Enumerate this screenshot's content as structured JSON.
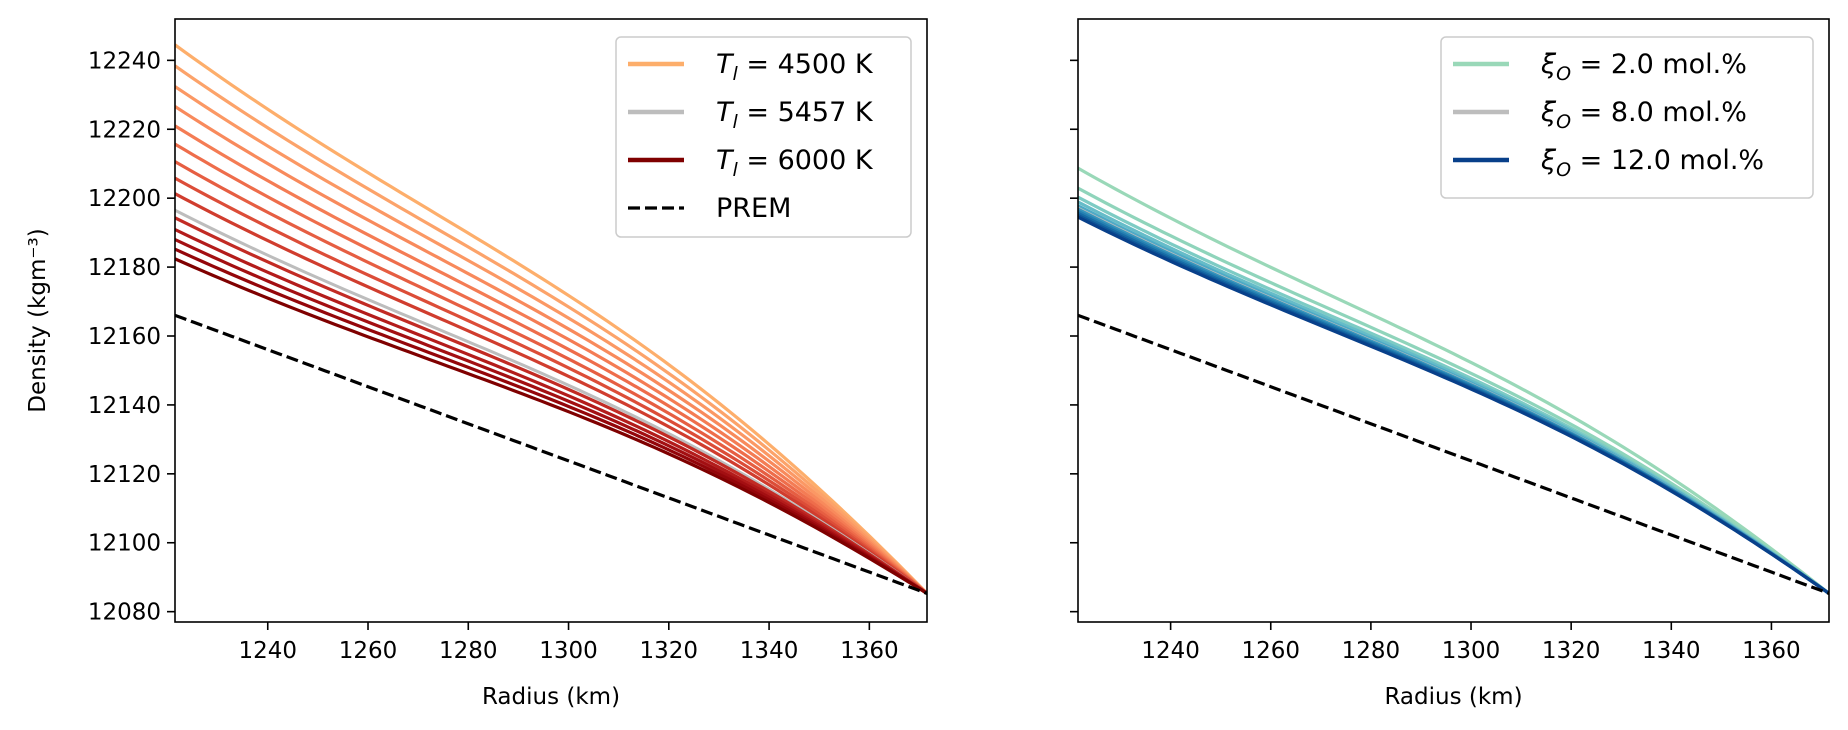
{
  "chart_data": [
    {
      "type": "line",
      "panel": "left",
      "xlabel": "Radius (km)",
      "ylabel": "Density (kgm⁻³)",
      "xlim": [
        1221.5,
        1371.5
      ],
      "ylim": [
        12077,
        12252
      ],
      "xticks": [
        1240,
        1260,
        1280,
        1300,
        1320,
        1340,
        1360
      ],
      "yticks": [
        12080,
        12100,
        12120,
        12140,
        12160,
        12180,
        12200,
        12220,
        12240
      ],
      "legend_position": "top-right",
      "grid": false,
      "legend": [
        {
          "label": "T_l = 4500 K",
          "color": "#fdae6b",
          "style": "solid"
        },
        {
          "label": "T_l = 5457 K",
          "color": "#bdbdbd",
          "style": "solid"
        },
        {
          "label": "T_l = 6000 K",
          "color": "#7f0000",
          "style": "solid"
        },
        {
          "label": "PREM",
          "color": "#000000",
          "style": "dashed"
        }
      ],
      "series": [
        {
          "name": "T_l = 4500 K",
          "color": "#fdae6b",
          "values_at_x": {
            "1221.5": 12244.5,
            "1371.5": 12085.3
          }
        },
        {
          "color": "#fca36a",
          "values_at_x": {
            "1221.5": 12238.4,
            "1371.5": 12085.3
          }
        },
        {
          "color": "#fb9864",
          "values_at_x": {
            "1221.5": 12232.4,
            "1371.5": 12085.3
          }
        },
        {
          "color": "#f88a5c",
          "values_at_x": {
            "1221.5": 12226.6,
            "1371.5": 12085.3
          }
        },
        {
          "color": "#f47c54",
          "values_at_x": {
            "1221.5": 12221.0,
            "1371.5": 12085.3
          }
        },
        {
          "color": "#ee6d4b",
          "values_at_x": {
            "1221.5": 12215.7,
            "1371.5": 12085.3
          }
        },
        {
          "color": "#e65e42",
          "values_at_x": {
            "1221.5": 12210.6,
            "1371.5": 12085.3
          }
        },
        {
          "color": "#dc4d38",
          "values_at_x": {
            "1221.5": 12205.8,
            "1371.5": 12085.3
          }
        },
        {
          "color": "#d03d2e",
          "values_at_x": {
            "1221.5": 12201.3,
            "1371.5": 12085.3
          }
        },
        {
          "name": "T_l = 5457 K",
          "color": "#bdbdbd",
          "values_at_x": {
            "1221.5": 12196.5,
            "1371.5": 12085.3
          }
        },
        {
          "color": "#c22b24",
          "values_at_x": {
            "1221.5": 12194.3,
            "1371.5": 12085.3
          }
        },
        {
          "color": "#b31c1b",
          "values_at_x": {
            "1221.5": 12190.9,
            "1371.5": 12085.3
          }
        },
        {
          "color": "#a30f12",
          "values_at_x": {
            "1221.5": 12188.0,
            "1371.5": 12085.3
          }
        },
        {
          "color": "#94060a",
          "values_at_x": {
            "1221.5": 12185.2,
            "1371.5": 12085.3
          }
        },
        {
          "name": "T_l = 6000 K",
          "color": "#7f0000",
          "values_at_x": {
            "1221.5": 12182.4,
            "1371.5": 12085.3
          }
        },
        {
          "name": "PREM",
          "color": "#000000",
          "style": "dashed",
          "values_at_x": {
            "1221.5": 12166.0,
            "1371.5": 12085.3
          }
        }
      ]
    },
    {
      "type": "line",
      "panel": "right",
      "xlabel": "Radius (km)",
      "ylabel": "",
      "xlim": [
        1221.5,
        1371.5
      ],
      "ylim": [
        12077,
        12252
      ],
      "xticks": [
        1240,
        1260,
        1280,
        1300,
        1320,
        1340,
        1360
      ],
      "yticks": [
        12080,
        12100,
        12120,
        12140,
        12160,
        12180,
        12200,
        12220,
        12240
      ],
      "legend_position": "top-right",
      "grid": false,
      "legend": [
        {
          "label": "ξ_O = 2.0 mol.%",
          "color": "#99d8b8",
          "style": "solid"
        },
        {
          "label": "ξ_O = 8.0 mol.%",
          "color": "#bdbdbd",
          "style": "solid"
        },
        {
          "label": "ξ_O = 12.0 mol.%",
          "color": "#08408a",
          "style": "solid"
        }
      ],
      "series": [
        {
          "name": "ξ_O = 2.0 mol.%",
          "color": "#99d8b8",
          "values_at_x": {
            "1221.5": 12208.7,
            "1371.5": 12085.3
          }
        },
        {
          "color": "#8fd4bb",
          "values_at_x": {
            "1221.5": 12202.9,
            "1371.5": 12085.3
          }
        },
        {
          "color": "#7dcbc4",
          "values_at_x": {
            "1221.5": 12200.3,
            "1371.5": 12085.3
          }
        },
        {
          "color": "#66bcc8",
          "values_at_x": {
            "1221.5": 12198.9,
            "1371.5": 12085.3
          }
        },
        {
          "color": "#4eaac6",
          "values_at_x": {
            "1221.5": 12197.8,
            "1371.5": 12085.3
          }
        },
        {
          "name": "ξ_O = 8.0 mol.%",
          "color": "#bdbdbd",
          "values_at_x": {
            "1221.5": 12197.1,
            "1371.5": 12085.3
          }
        },
        {
          "color": "#3795bc",
          "values_at_x": {
            "1221.5": 12196.8,
            "1371.5": 12085.3
          }
        },
        {
          "color": "#2580b2",
          "values_at_x": {
            "1221.5": 12196.2,
            "1371.5": 12085.3
          }
        },
        {
          "color": "#176ba5",
          "values_at_x": {
            "1221.5": 12195.6,
            "1371.5": 12085.3
          }
        },
        {
          "color": "#0e5698",
          "values_at_x": {
            "1221.5": 12195.0,
            "1371.5": 12085.3
          }
        },
        {
          "name": "ξ_O = 12.0 mol.%",
          "color": "#08408a",
          "values_at_x": {
            "1221.5": 12194.5,
            "1371.5": 12085.3
          }
        },
        {
          "name": "PREM",
          "color": "#000000",
          "style": "dashed",
          "values_at_x": {
            "1221.5": 12166.0,
            "1371.5": 12085.3
          }
        }
      ]
    }
  ]
}
